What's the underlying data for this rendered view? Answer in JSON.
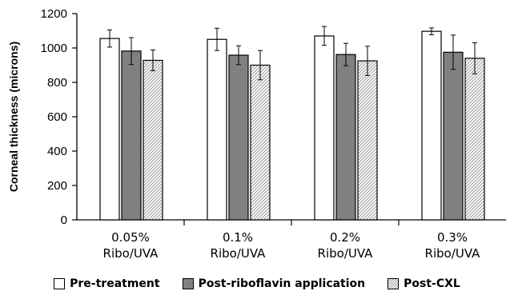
{
  "chart_data": {
    "type": "bar",
    "title": "",
    "xlabel": "",
    "ylabel": "Corneal thickness (microns)",
    "ylim": [
      0,
      1200
    ],
    "yticks": [
      0,
      200,
      400,
      600,
      800,
      1000,
      1200
    ],
    "grid": false,
    "legend_position": "bottom",
    "categories": [
      [
        "0.05%",
        "Ribo/UVA"
      ],
      [
        "0.1%",
        "Ribo/UVA"
      ],
      [
        "0.2%",
        "Ribo/UVA"
      ],
      [
        "0.3%",
        "Ribo/UVA"
      ]
    ],
    "series": [
      {
        "name": "Pre-treatment",
        "values": [
          1055,
          1050,
          1070,
          1097
        ],
        "errors": [
          50,
          65,
          55,
          20
        ],
        "color": "#ffffff",
        "pattern": "none"
      },
      {
        "name": "Post-riboflavin application",
        "values": [
          982,
          958,
          962,
          975
        ],
        "errors": [
          78,
          55,
          65,
          100
        ],
        "color": "#808080",
        "pattern": "none"
      },
      {
        "name": "Post-CXL",
        "values": [
          928,
          900,
          925,
          940
        ],
        "errors": [
          60,
          85,
          85,
          90
        ],
        "color": "#d9d9d9",
        "pattern": "hatch"
      }
    ]
  }
}
